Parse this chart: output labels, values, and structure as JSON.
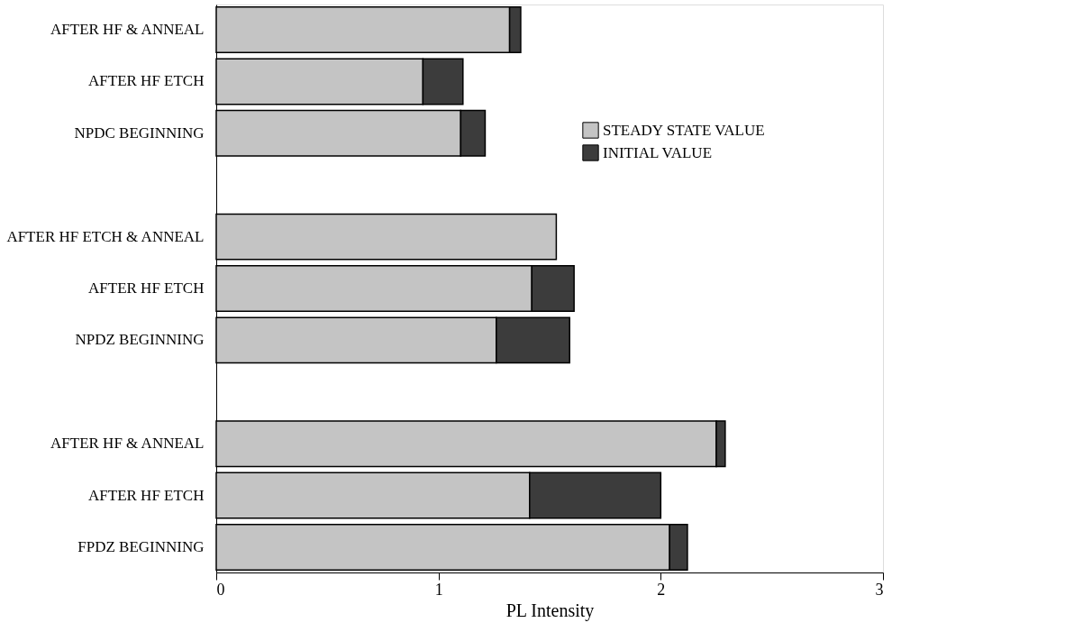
{
  "chart_data": {
    "type": "bar",
    "orientation": "horizontal",
    "stacked": true,
    "xlabel": "PL Intensity",
    "categories": [
      "AFTER HF & ANNEAL",
      "AFTER HF ETCH",
      "NPDC BEGINNING",
      null,
      "AFTER HF ETCH & ANNEAL",
      "AFTER HF ETCH",
      "NPDZ BEGINNING",
      null,
      "AFTER HF & ANNEAL",
      "AFTER HF ETCH",
      "FPDZ BEGINNING"
    ],
    "series": [
      {
        "name": "STEADY STATE VALUE",
        "color": "#c4c4c4",
        "values": [
          1.32,
          0.93,
          1.1,
          null,
          1.53,
          1.42,
          1.26,
          null,
          2.25,
          1.41,
          2.04
        ]
      },
      {
        "name": "INITIAL VALUE",
        "color": "#3c3c3c",
        "values": [
          0.05,
          0.18,
          0.11,
          null,
          null,
          0.19,
          0.33,
          null,
          0.04,
          0.59,
          0.08
        ]
      }
    ],
    "xlim": [
      0,
      3
    ],
    "xticks": [
      0,
      1,
      2,
      3
    ],
    "legend": "top right",
    "grid": false
  }
}
